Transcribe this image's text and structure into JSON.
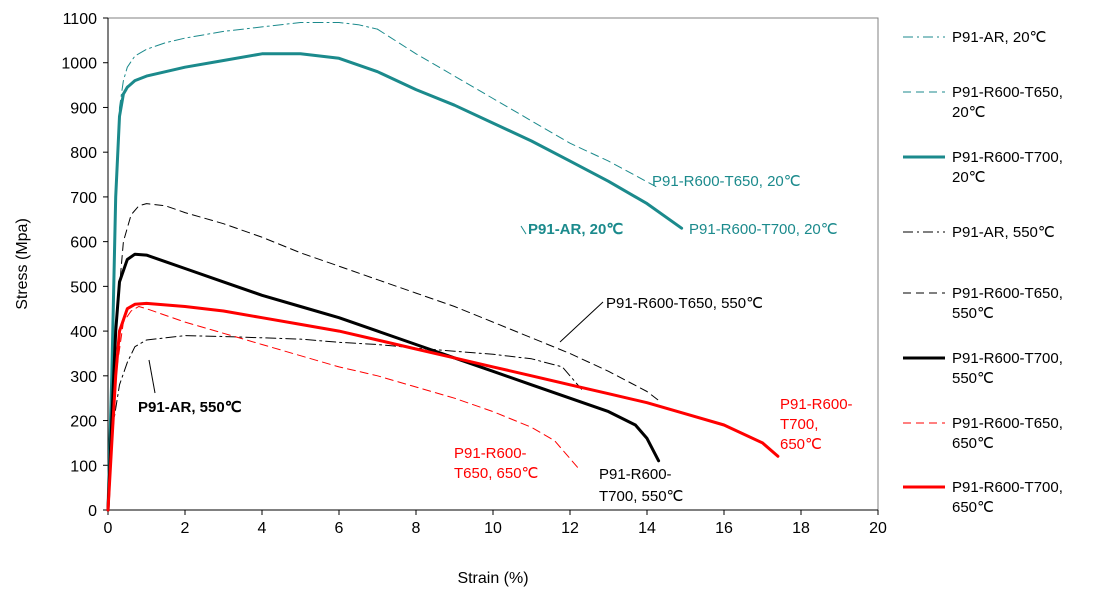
{
  "chart_data": {
    "type": "line",
    "xlabel": "Strain (%)",
    "ylabel": "Stress (Mpa)",
    "xlim": [
      0,
      20
    ],
    "ylim": [
      0,
      1100
    ],
    "x_ticks": [
      0,
      2,
      4,
      6,
      8,
      10,
      12,
      14,
      16,
      18,
      20
    ],
    "y_ticks": [
      0,
      100,
      200,
      300,
      400,
      500,
      600,
      700,
      800,
      900,
      1000,
      1100
    ],
    "grid": false,
    "legend_position": "right",
    "series": [
      {
        "name": "P91-AR, 20℃",
        "color": "#1b8a8c",
        "dash": "dashdot",
        "width": 1,
        "points": [
          [
            0,
            0
          ],
          [
            0.1,
            300
          ],
          [
            0.2,
            700
          ],
          [
            0.3,
            900
          ],
          [
            0.4,
            960
          ],
          [
            0.5,
            990
          ],
          [
            0.7,
            1015
          ],
          [
            1.0,
            1030
          ],
          [
            1.5,
            1045
          ],
          [
            2,
            1055
          ],
          [
            3,
            1070
          ],
          [
            4,
            1080
          ],
          [
            5,
            1090
          ],
          [
            6,
            1090
          ],
          [
            6.5,
            1085
          ],
          [
            7,
            1075
          ]
        ]
      },
      {
        "name": "P91-R600-T650, 20℃",
        "color": "#1b8a8c",
        "dash": "dash",
        "width": 1,
        "points": [
          [
            7,
            1075
          ],
          [
            8,
            1020
          ],
          [
            9,
            970
          ],
          [
            10,
            920
          ],
          [
            11,
            870
          ],
          [
            12,
            820
          ],
          [
            13,
            780
          ],
          [
            14.3,
            720
          ]
        ]
      },
      {
        "name": "P91-R600-T700, 20℃",
        "color": "#1b8a8c",
        "dash": "solid",
        "width": 3,
        "points": [
          [
            0,
            0
          ],
          [
            0.1,
            300
          ],
          [
            0.2,
            700
          ],
          [
            0.3,
            880
          ],
          [
            0.4,
            930
          ],
          [
            0.5,
            945
          ],
          [
            0.7,
            960
          ],
          [
            1,
            970
          ],
          [
            2,
            990
          ],
          [
            3,
            1005
          ],
          [
            4,
            1020
          ],
          [
            5,
            1020
          ],
          [
            6,
            1010
          ],
          [
            7,
            980
          ],
          [
            8,
            940
          ],
          [
            9,
            905
          ],
          [
            10,
            865
          ],
          [
            11,
            825
          ],
          [
            12,
            780
          ],
          [
            13,
            735
          ],
          [
            14,
            685
          ],
          [
            14.9,
            630
          ]
        ]
      },
      {
        "name": "P91-AR, 550℃",
        "color": "#000000",
        "dash": "dashdot",
        "width": 1,
        "points": [
          [
            0,
            0
          ],
          [
            0.15,
            200
          ],
          [
            0.3,
            280
          ],
          [
            0.5,
            330
          ],
          [
            0.7,
            365
          ],
          [
            1,
            380
          ],
          [
            2,
            390
          ],
          [
            3,
            388
          ],
          [
            4,
            385
          ],
          [
            5,
            382
          ],
          [
            6,
            375
          ],
          [
            7,
            370
          ],
          [
            8,
            362
          ],
          [
            9,
            355
          ],
          [
            10,
            348
          ],
          [
            11,
            338
          ],
          [
            11.8,
            320
          ],
          [
            12.3,
            270
          ]
        ]
      },
      {
        "name": "P91-R600-T650, 550℃",
        "color": "#000000",
        "dash": "dash",
        "width": 1,
        "points": [
          [
            0,
            0
          ],
          [
            0.2,
            400
          ],
          [
            0.4,
            600
          ],
          [
            0.6,
            660
          ],
          [
            0.8,
            680
          ],
          [
            1,
            685
          ],
          [
            1.5,
            680
          ],
          [
            2,
            665
          ],
          [
            3,
            640
          ],
          [
            4,
            610
          ],
          [
            5,
            575
          ],
          [
            6,
            545
          ],
          [
            7,
            515
          ],
          [
            8,
            485
          ],
          [
            9,
            455
          ],
          [
            10,
            420
          ],
          [
            11,
            385
          ],
          [
            12,
            350
          ],
          [
            13,
            310
          ],
          [
            14,
            265
          ],
          [
            14.3,
            245
          ]
        ]
      },
      {
        "name": "P91-R600-T700, 550℃",
        "color": "#000000",
        "dash": "solid",
        "width": 3,
        "points": [
          [
            0,
            0
          ],
          [
            0.1,
            200
          ],
          [
            0.2,
            400
          ],
          [
            0.3,
            510
          ],
          [
            0.5,
            560
          ],
          [
            0.7,
            572
          ],
          [
            1,
            570
          ],
          [
            1.5,
            555
          ],
          [
            2,
            540
          ],
          [
            3,
            510
          ],
          [
            4,
            480
          ],
          [
            5,
            455
          ],
          [
            6,
            430
          ],
          [
            7,
            400
          ],
          [
            8,
            370
          ],
          [
            9,
            340
          ],
          [
            10,
            310
          ],
          [
            11,
            280
          ],
          [
            12,
            250
          ],
          [
            13,
            220
          ],
          [
            13.7,
            190
          ],
          [
            14,
            160
          ],
          [
            14.3,
            110
          ]
        ]
      },
      {
        "name": "P91-R600-T650, 650℃",
        "color": "#ff0000",
        "dash": "dash",
        "width": 1,
        "points": [
          [
            0,
            0
          ],
          [
            0.2,
            300
          ],
          [
            0.4,
            420
          ],
          [
            0.6,
            445
          ],
          [
            0.8,
            455
          ],
          [
            1,
            450
          ],
          [
            2,
            420
          ],
          [
            3,
            395
          ],
          [
            4,
            370
          ],
          [
            5,
            345
          ],
          [
            6,
            320
          ],
          [
            7,
            300
          ],
          [
            8,
            275
          ],
          [
            9,
            250
          ],
          [
            10,
            220
          ],
          [
            11,
            185
          ],
          [
            11.6,
            155
          ],
          [
            12.2,
            95
          ]
        ]
      },
      {
        "name": "P91-R600-T700, 650℃",
        "color": "#ff0000",
        "dash": "solid",
        "width": 3,
        "points": [
          [
            0,
            0
          ],
          [
            0.1,
            150
          ],
          [
            0.2,
            300
          ],
          [
            0.3,
            400
          ],
          [
            0.5,
            450
          ],
          [
            0.7,
            460
          ],
          [
            1,
            462
          ],
          [
            2,
            455
          ],
          [
            3,
            445
          ],
          [
            4,
            430
          ],
          [
            5,
            415
          ],
          [
            6,
            400
          ],
          [
            7,
            380
          ],
          [
            8,
            360
          ],
          [
            9,
            340
          ],
          [
            10,
            320
          ],
          [
            11,
            300
          ],
          [
            12,
            280
          ],
          [
            13,
            260
          ],
          [
            14,
            240
          ],
          [
            15,
            215
          ],
          [
            16,
            190
          ],
          [
            17,
            150
          ],
          [
            17.4,
            120
          ]
        ]
      }
    ],
    "annotations": [
      {
        "text": "P91-R600-T650, 20℃",
        "color": "#1b8a8c",
        "bold": false
      },
      {
        "text": "P91-AR, 20℃",
        "color": "#1b8a8c",
        "bold": true
      },
      {
        "text": "P91-R600-T700, 20℃",
        "color": "#1b8a8c",
        "bold": false
      },
      {
        "text": "P91-R600-T650, 550℃",
        "color": "#000000",
        "bold": false
      },
      {
        "text": "P91-AR, 550℃",
        "color": "#000000",
        "bold": true
      },
      {
        "lines": [
          "P91-R600-",
          "T650, 650℃"
        ],
        "color": "#ff0000",
        "bold": false
      },
      {
        "lines": [
          "P91-R600-",
          "T700, 550℃"
        ],
        "color": "#000000",
        "bold": false
      },
      {
        "lines": [
          "P91-R600-",
          "T700,",
          "650℃"
        ],
        "color": "#ff0000",
        "bold": false
      }
    ],
    "legend": [
      {
        "lines": [
          "P91-AR, 20℃"
        ],
        "color": "#1b8a8c",
        "dash": "dashdot",
        "width": 1
      },
      {
        "lines": [
          "P91-R600-T650,",
          "20℃"
        ],
        "color": "#1b8a8c",
        "dash": "dash",
        "width": 1
      },
      {
        "lines": [
          "P91-R600-T700,",
          "20℃"
        ],
        "color": "#1b8a8c",
        "dash": "solid",
        "width": 3
      },
      {
        "lines": [
          "P91-AR, 550℃"
        ],
        "color": "#000000",
        "dash": "dashdot",
        "width": 1
      },
      {
        "lines": [
          "P91-R600-T650,",
          "550℃"
        ],
        "color": "#000000",
        "dash": "dash",
        "width": 1
      },
      {
        "lines": [
          "P91-R600-T700,",
          "550℃"
        ],
        "color": "#000000",
        "dash": "solid",
        "width": 3
      },
      {
        "lines": [
          "P91-R600-T650,",
          "650℃"
        ],
        "color": "#ff0000",
        "dash": "dash",
        "width": 1
      },
      {
        "lines": [
          "P91-R600-T700,",
          "650℃"
        ],
        "color": "#ff0000",
        "dash": "solid",
        "width": 3
      }
    ]
  }
}
